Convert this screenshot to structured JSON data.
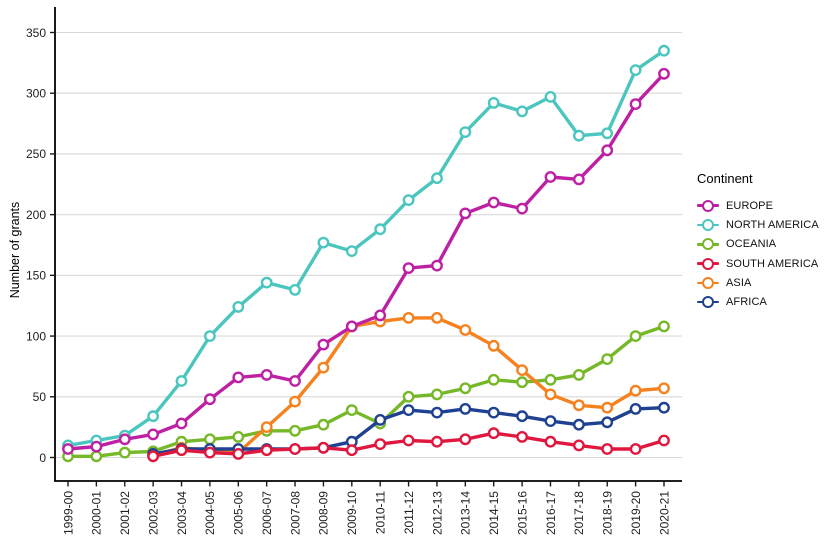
{
  "page": {
    "background": "#ffffff"
  },
  "chart_data": {
    "type": "line",
    "title": "",
    "xlabel": "",
    "ylabel": "Number of grants",
    "ylim": [
      0,
      350
    ],
    "yticks": [
      0,
      50,
      100,
      150,
      200,
      250,
      300,
      350
    ],
    "grid": true,
    "grid_color": "#d9d9d9",
    "axis_color": "#000000",
    "tick_label_color": "#1f1f1f",
    "marker": "open-circle",
    "legend_position": "right",
    "legend_title": "Continent",
    "categories": [
      "1999-00",
      "2000-01",
      "2001-02",
      "2002-03",
      "2003-04",
      "2004-05",
      "2005-06",
      "2006-07",
      "2007-08",
      "2008-09",
      "2009-10",
      "2010-11",
      "2011-12",
      "2012-13",
      "2013-14",
      "2014-15",
      "2015-16",
      "2016-17",
      "2017-18",
      "2018-19",
      "2019-20",
      "2020-21"
    ],
    "series": [
      {
        "name": "EUROPE",
        "color": "#be20a4",
        "values": [
          7,
          9,
          15,
          19,
          28,
          48,
          66,
          68,
          63,
          93,
          108,
          117,
          156,
          158,
          201,
          210,
          205,
          231,
          229,
          253,
          291,
          316
        ]
      },
      {
        "name": "NORTH AMERICA",
        "color": "#4bc6be",
        "values": [
          10,
          14,
          18,
          34,
          63,
          100,
          124,
          144,
          138,
          177,
          170,
          188,
          212,
          230,
          268,
          292,
          285,
          297,
          265,
          267,
          319,
          335
        ]
      },
      {
        "name": "OCEANIA",
        "color": "#77b829",
        "values": [
          1,
          1,
          4,
          5,
          13,
          15,
          17,
          22,
          22,
          27,
          39,
          28,
          50,
          52,
          57,
          64,
          62,
          64,
          68,
          81,
          100,
          108
        ]
      },
      {
        "name": "SOUTH AMERICA",
        "color": "#e0173e",
        "values": [
          null,
          null,
          null,
          1,
          6,
          4,
          3,
          6,
          7,
          8,
          6,
          11,
          14,
          13,
          15,
          20,
          17,
          13,
          10,
          7,
          7,
          14
        ]
      },
      {
        "name": "ASIA",
        "color": "#f5811f",
        "values": [
          null,
          null,
          null,
          2,
          8,
          6,
          4,
          25,
          46,
          74,
          108,
          112,
          115,
          115,
          105,
          92,
          72,
          52,
          43,
          41,
          55,
          57
        ]
      },
      {
        "name": "AFRICA",
        "color": "#1e4191",
        "values": [
          null,
          null,
          null,
          3,
          7,
          7,
          7,
          7,
          7,
          8,
          13,
          31,
          39,
          37,
          40,
          37,
          34,
          30,
          27,
          29,
          40,
          41
        ]
      }
    ],
    "draw_order": [
      "NORTH AMERICA",
      "OCEANIA",
      "ASIA",
      "AFRICA",
      "EUROPE",
      "SOUTH AMERICA"
    ]
  }
}
